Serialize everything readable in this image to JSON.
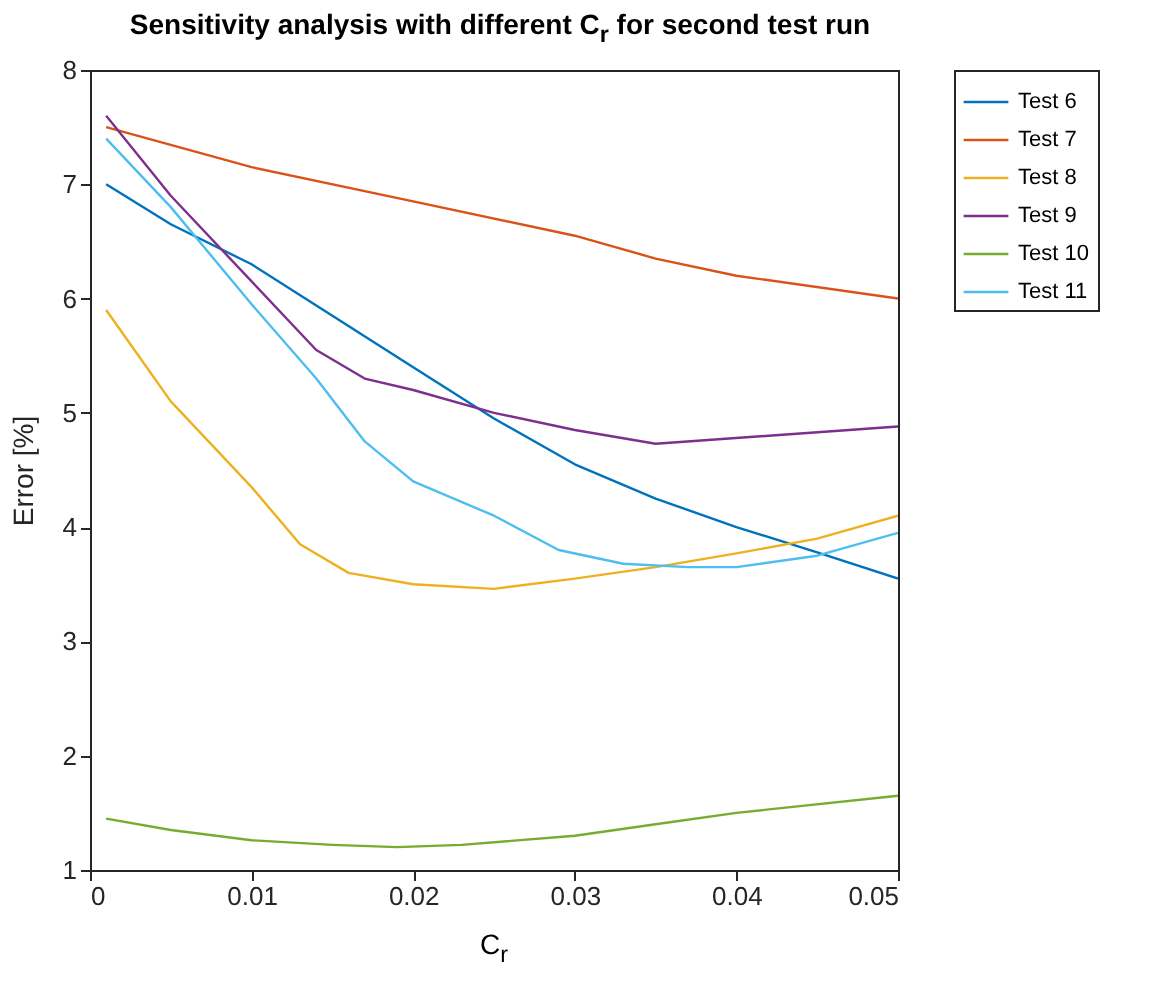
{
  "chart_data": {
    "type": "line",
    "title": "Sensitivity analysis with different C$_{r}$ for second test run",
    "xlabel": "C$_{r}$",
    "ylabel": "Error [%]",
    "xlim": [
      0,
      0.05
    ],
    "ylim": [
      1,
      8
    ],
    "xticks": [
      0,
      0.01,
      0.02,
      0.03,
      0.04,
      0.05
    ],
    "yticks": [
      1,
      2,
      3,
      4,
      5,
      6,
      7,
      8
    ],
    "grid": false,
    "legend": "right",
    "line_style": "solid",
    "marker": "none",
    "series": [
      {
        "name": "Test 6",
        "color": "#0072bd",
        "x": [
          0.001,
          0.005,
          0.01,
          0.015,
          0.02,
          0.025,
          0.03,
          0.035,
          0.04,
          0.045,
          0.05
        ],
        "values": [
          7.0,
          6.65,
          6.3,
          5.85,
          5.4,
          4.95,
          4.55,
          4.25,
          4.0,
          3.78,
          3.55
        ]
      },
      {
        "name": "Test 7",
        "color": "#d95319",
        "x": [
          0.001,
          0.01,
          0.02,
          0.03,
          0.035,
          0.04,
          0.05
        ],
        "values": [
          7.5,
          7.15,
          6.85,
          6.55,
          6.35,
          6.2,
          6.0
        ]
      },
      {
        "name": "Test 8",
        "color": "#edb120",
        "x": [
          0.001,
          0.005,
          0.01,
          0.013,
          0.016,
          0.02,
          0.025,
          0.03,
          0.035,
          0.04,
          0.045,
          0.05
        ],
        "values": [
          5.9,
          5.1,
          4.35,
          3.85,
          3.6,
          3.5,
          3.46,
          3.55,
          3.65,
          3.77,
          3.9,
          4.1
        ]
      },
      {
        "name": "Test 9",
        "color": "#7e2f8e",
        "x": [
          0.001,
          0.005,
          0.01,
          0.014,
          0.017,
          0.02,
          0.025,
          0.03,
          0.035,
          0.042,
          0.05
        ],
        "values": [
          7.6,
          6.9,
          6.15,
          5.55,
          5.3,
          5.2,
          5.0,
          4.85,
          4.73,
          4.8,
          4.88
        ]
      },
      {
        "name": "Test 10",
        "color": "#77ac30",
        "x": [
          0.001,
          0.005,
          0.01,
          0.015,
          0.019,
          0.023,
          0.03,
          0.035,
          0.04,
          0.05
        ],
        "values": [
          1.45,
          1.35,
          1.26,
          1.22,
          1.2,
          1.22,
          1.3,
          1.4,
          1.5,
          1.65
        ]
      },
      {
        "name": "Test 11",
        "color": "#4dbeee",
        "x": [
          0.001,
          0.005,
          0.01,
          0.014,
          0.017,
          0.02,
          0.025,
          0.029,
          0.033,
          0.037,
          0.04,
          0.045,
          0.05
        ],
        "values": [
          7.4,
          6.8,
          5.95,
          5.3,
          4.75,
          4.4,
          4.1,
          3.8,
          3.68,
          3.65,
          3.65,
          3.75,
          3.95
        ]
      }
    ]
  }
}
